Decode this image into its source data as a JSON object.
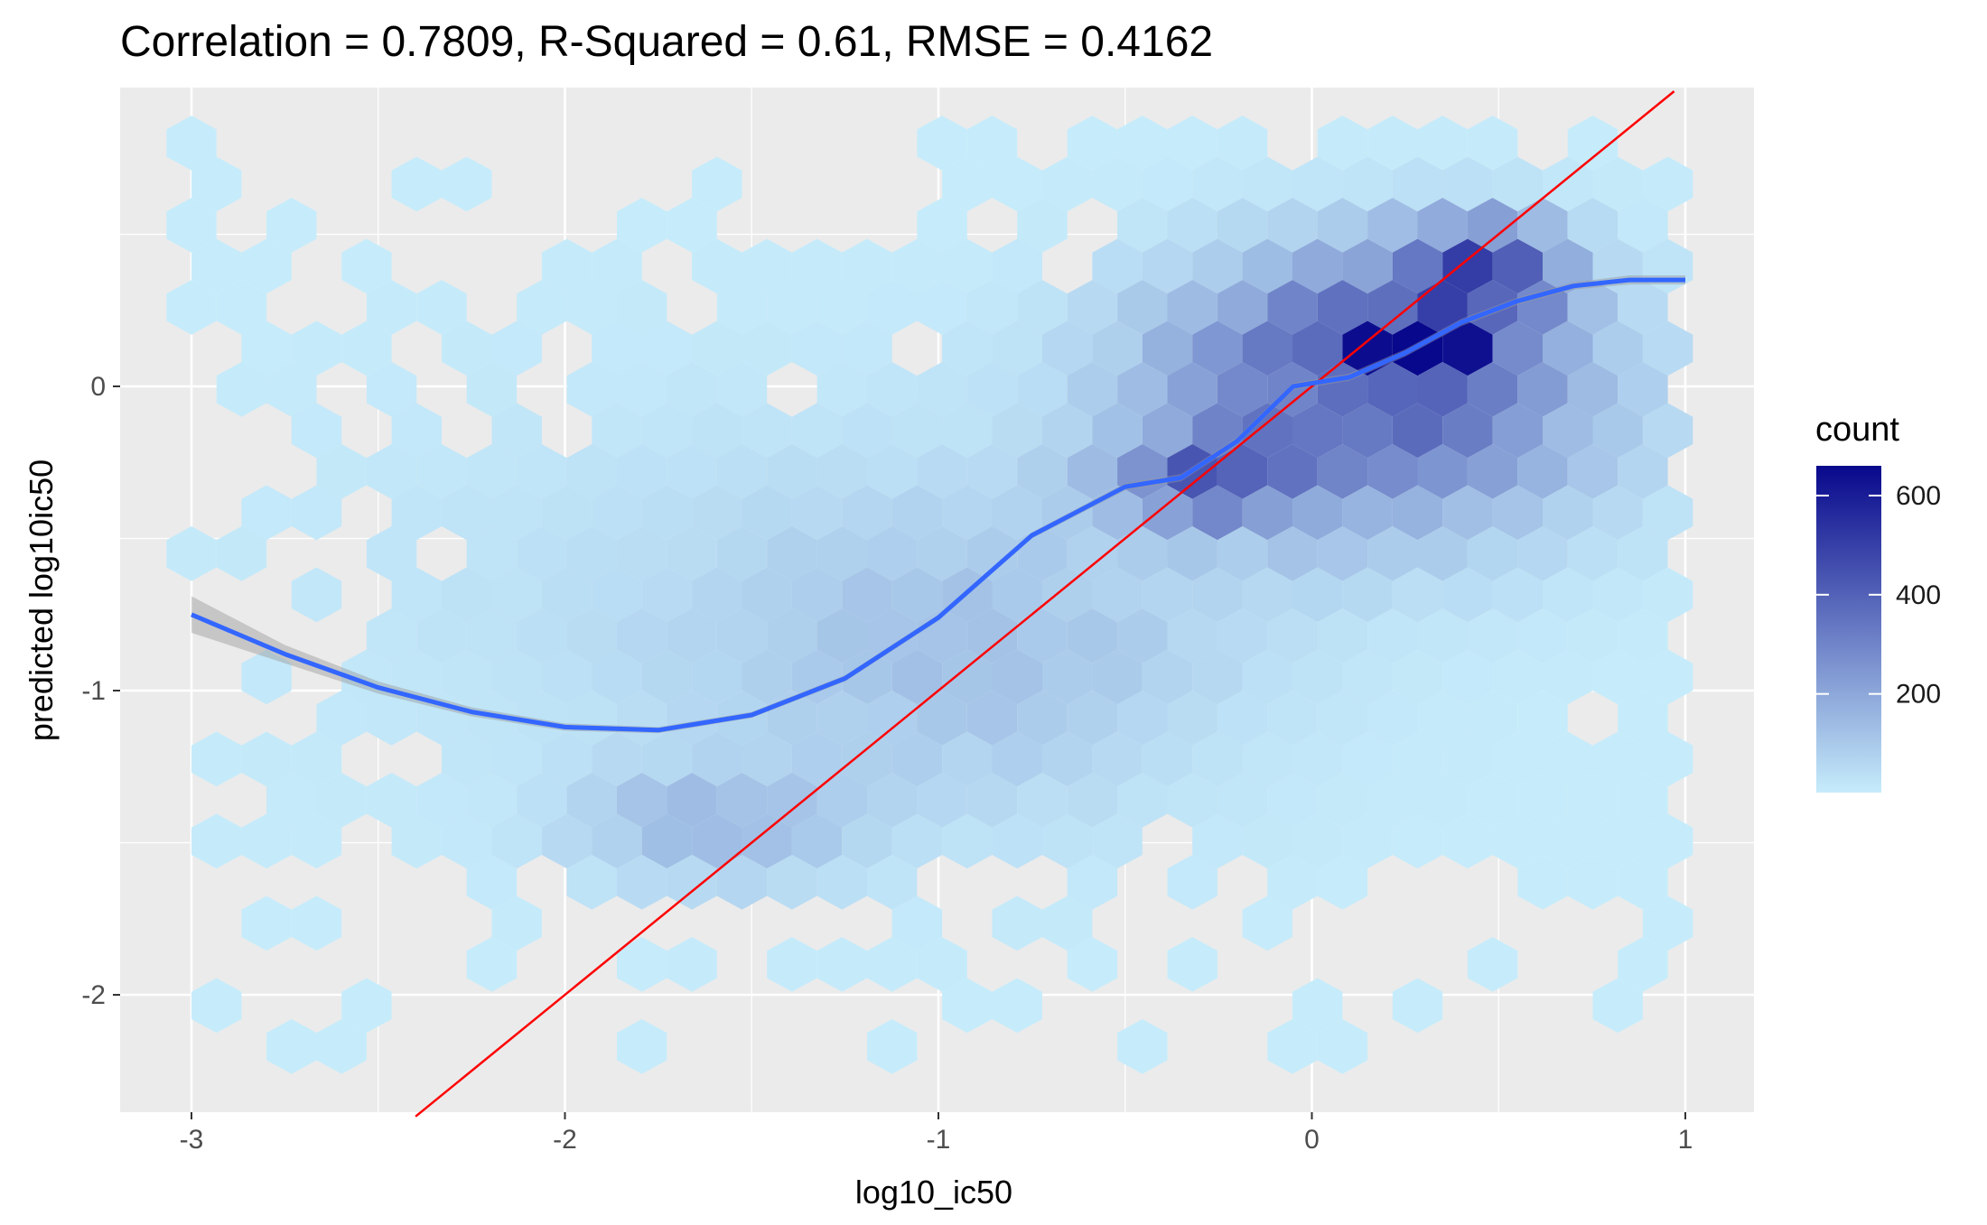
{
  "chart_data": {
    "type": "hexbin",
    "title": "Correlation = 0.7809, R-Squared = 0.61, RMSE = 0.4162",
    "xlabel": "log10_ic50",
    "ylabel": "predicted log10ic50",
    "xlim": [
      -3.2,
      1.2
    ],
    "ylim": [
      -2.4,
      0.97
    ],
    "x_ticks": [
      -3,
      -2,
      -1,
      0,
      1
    ],
    "y_ticks": [
      -2,
      -1,
      0
    ],
    "x_tick_labels": [
      "-3",
      "-2",
      "-1",
      "0",
      "1"
    ],
    "y_tick_labels": [
      "-2",
      "-1",
      "0"
    ],
    "grid": true,
    "background": "#ebebeb",
    "legend": {
      "title": "count",
      "position": "right",
      "range": [
        1,
        660
      ],
      "ticks": [
        200,
        400,
        600
      ],
      "tick_labels": [
        "200",
        "400",
        "600"
      ],
      "low_color": "#c6ecfb",
      "high_color": "#08088c"
    },
    "hexbin": {
      "binwidth_x": 0.134,
      "binwidth_y": 0.135,
      "x_range": [
        -3.0,
        1.0
      ],
      "y_range": [
        -2.25,
        0.8
      ],
      "peak": {
        "x": 0.27,
        "y": 0.13,
        "count": 660
      },
      "clusters": [
        {
          "x": 0.27,
          "y": 0.13,
          "count": 660
        },
        {
          "x": 0.05,
          "y": 0.08,
          "count": 430
        },
        {
          "x": 0.4,
          "y": 0.33,
          "count": 430
        },
        {
          "x": 0.5,
          "y": 0.48,
          "count": 370
        },
        {
          "x": -0.3,
          "y": -0.3,
          "count": 310
        },
        {
          "x": -1.6,
          "y": -1.45,
          "count": 160
        }
      ]
    },
    "series": [
      {
        "type": "smooth",
        "color": "#3366ff",
        "x": [
          -3.0,
          -2.75,
          -2.5,
          -2.25,
          -2.0,
          -1.75,
          -1.5,
          -1.25,
          -1.0,
          -0.75,
          -0.5,
          -0.35,
          -0.2,
          -0.05,
          0.1,
          0.25,
          0.4,
          0.55,
          0.7,
          0.85,
          1.0
        ],
        "y": [
          -0.75,
          -0.88,
          -0.99,
          -1.07,
          -1.12,
          -1.13,
          -1.08,
          -0.96,
          -0.76,
          -0.49,
          -0.33,
          -0.3,
          -0.18,
          0.0,
          0.03,
          0.11,
          0.21,
          0.28,
          0.33,
          0.35,
          0.35
        ],
        "ci_halfwidth": [
          0.06,
          0.03,
          0.02,
          0.015,
          0.012,
          0.01,
          0.01,
          0.01,
          0.01,
          0.01,
          0.012,
          0.012,
          0.012,
          0.012,
          0.012,
          0.012,
          0.012,
          0.012,
          0.012,
          0.015,
          0.015
        ]
      },
      {
        "type": "identity-line",
        "color": "#ff0000",
        "x": [
          -2.4,
          0.97
        ],
        "y": [
          -2.4,
          0.97
        ]
      }
    ]
  }
}
